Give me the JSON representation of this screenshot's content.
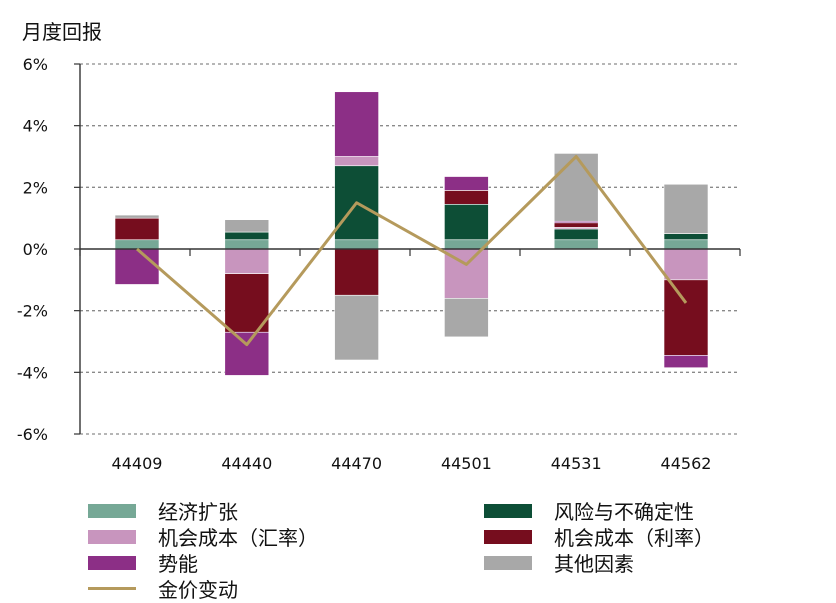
{
  "colors": {
    "economic_expansion": "#76a896",
    "risk_uncertainty": "#0d4e36",
    "opportunity_cost_fx": "#c895be",
    "opportunity_cost_rate": "#760d1e",
    "momentum": "#8c2f86",
    "other": "#a8a8a8",
    "gold": "#b59a5c"
  },
  "chart_data": {
    "type": "bar",
    "stacked": true,
    "title": "",
    "ylabel": "月度回报",
    "xlabel": "",
    "ylim": [
      -6,
      6
    ],
    "yticks": [
      "6%",
      "4%",
      "2%",
      "0%",
      "-2%",
      "-4%",
      "-6%"
    ],
    "categories": [
      "44409",
      "44440",
      "44470",
      "44501",
      "44531",
      "44562"
    ],
    "series": [
      {
        "name": "经济扩张",
        "key": "economic_expansion",
        "values": [
          0.3,
          0.3,
          0.3,
          0.3,
          0.3,
          0.3
        ]
      },
      {
        "name": "风险与不确定性",
        "key": "risk_uncertainty",
        "values": [
          0,
          0.25,
          2.4,
          1.15,
          0.35,
          0.2
        ]
      },
      {
        "name": "机会成本（汇率）",
        "key": "opportunity_cost_fx",
        "values": [
          0,
          -0.8,
          0.3,
          -1.6,
          0.05,
          -1.0
        ]
      },
      {
        "name": "机会成本（利率）",
        "key": "opportunity_cost_rate",
        "values": [
          0.7,
          -1.9,
          -1.5,
          0.45,
          0.15,
          -2.45
        ]
      },
      {
        "name": "势能",
        "key": "momentum",
        "values": [
          -1.15,
          -1.4,
          2.1,
          0.45,
          0.05,
          -0.4
        ]
      },
      {
        "name": "其他因素",
        "key": "other",
        "values": [
          0.1,
          0.4,
          -2.1,
          -1.25,
          2.2,
          1.6
        ]
      }
    ],
    "line": {
      "name": "金价变动",
      "key": "gold",
      "values": [
        0,
        -3.1,
        1.5,
        -0.5,
        3.0,
        -1.75
      ]
    },
    "grid": true,
    "legend_position": "bottom"
  },
  "legend": {
    "items": [
      {
        "label": "经济扩张",
        "key": "economic_expansion",
        "kind": "bar"
      },
      {
        "label": "风险与不确定性",
        "key": "risk_uncertainty",
        "kind": "bar"
      },
      {
        "label": "机会成本（汇率）",
        "key": "opportunity_cost_fx",
        "kind": "bar"
      },
      {
        "label": "机会成本（利率）",
        "key": "opportunity_cost_rate",
        "kind": "bar"
      },
      {
        "label": "势能",
        "key": "momentum",
        "kind": "bar"
      },
      {
        "label": "其他因素",
        "key": "other",
        "kind": "bar"
      },
      {
        "label": "金价变动",
        "key": "gold",
        "kind": "line"
      }
    ]
  }
}
